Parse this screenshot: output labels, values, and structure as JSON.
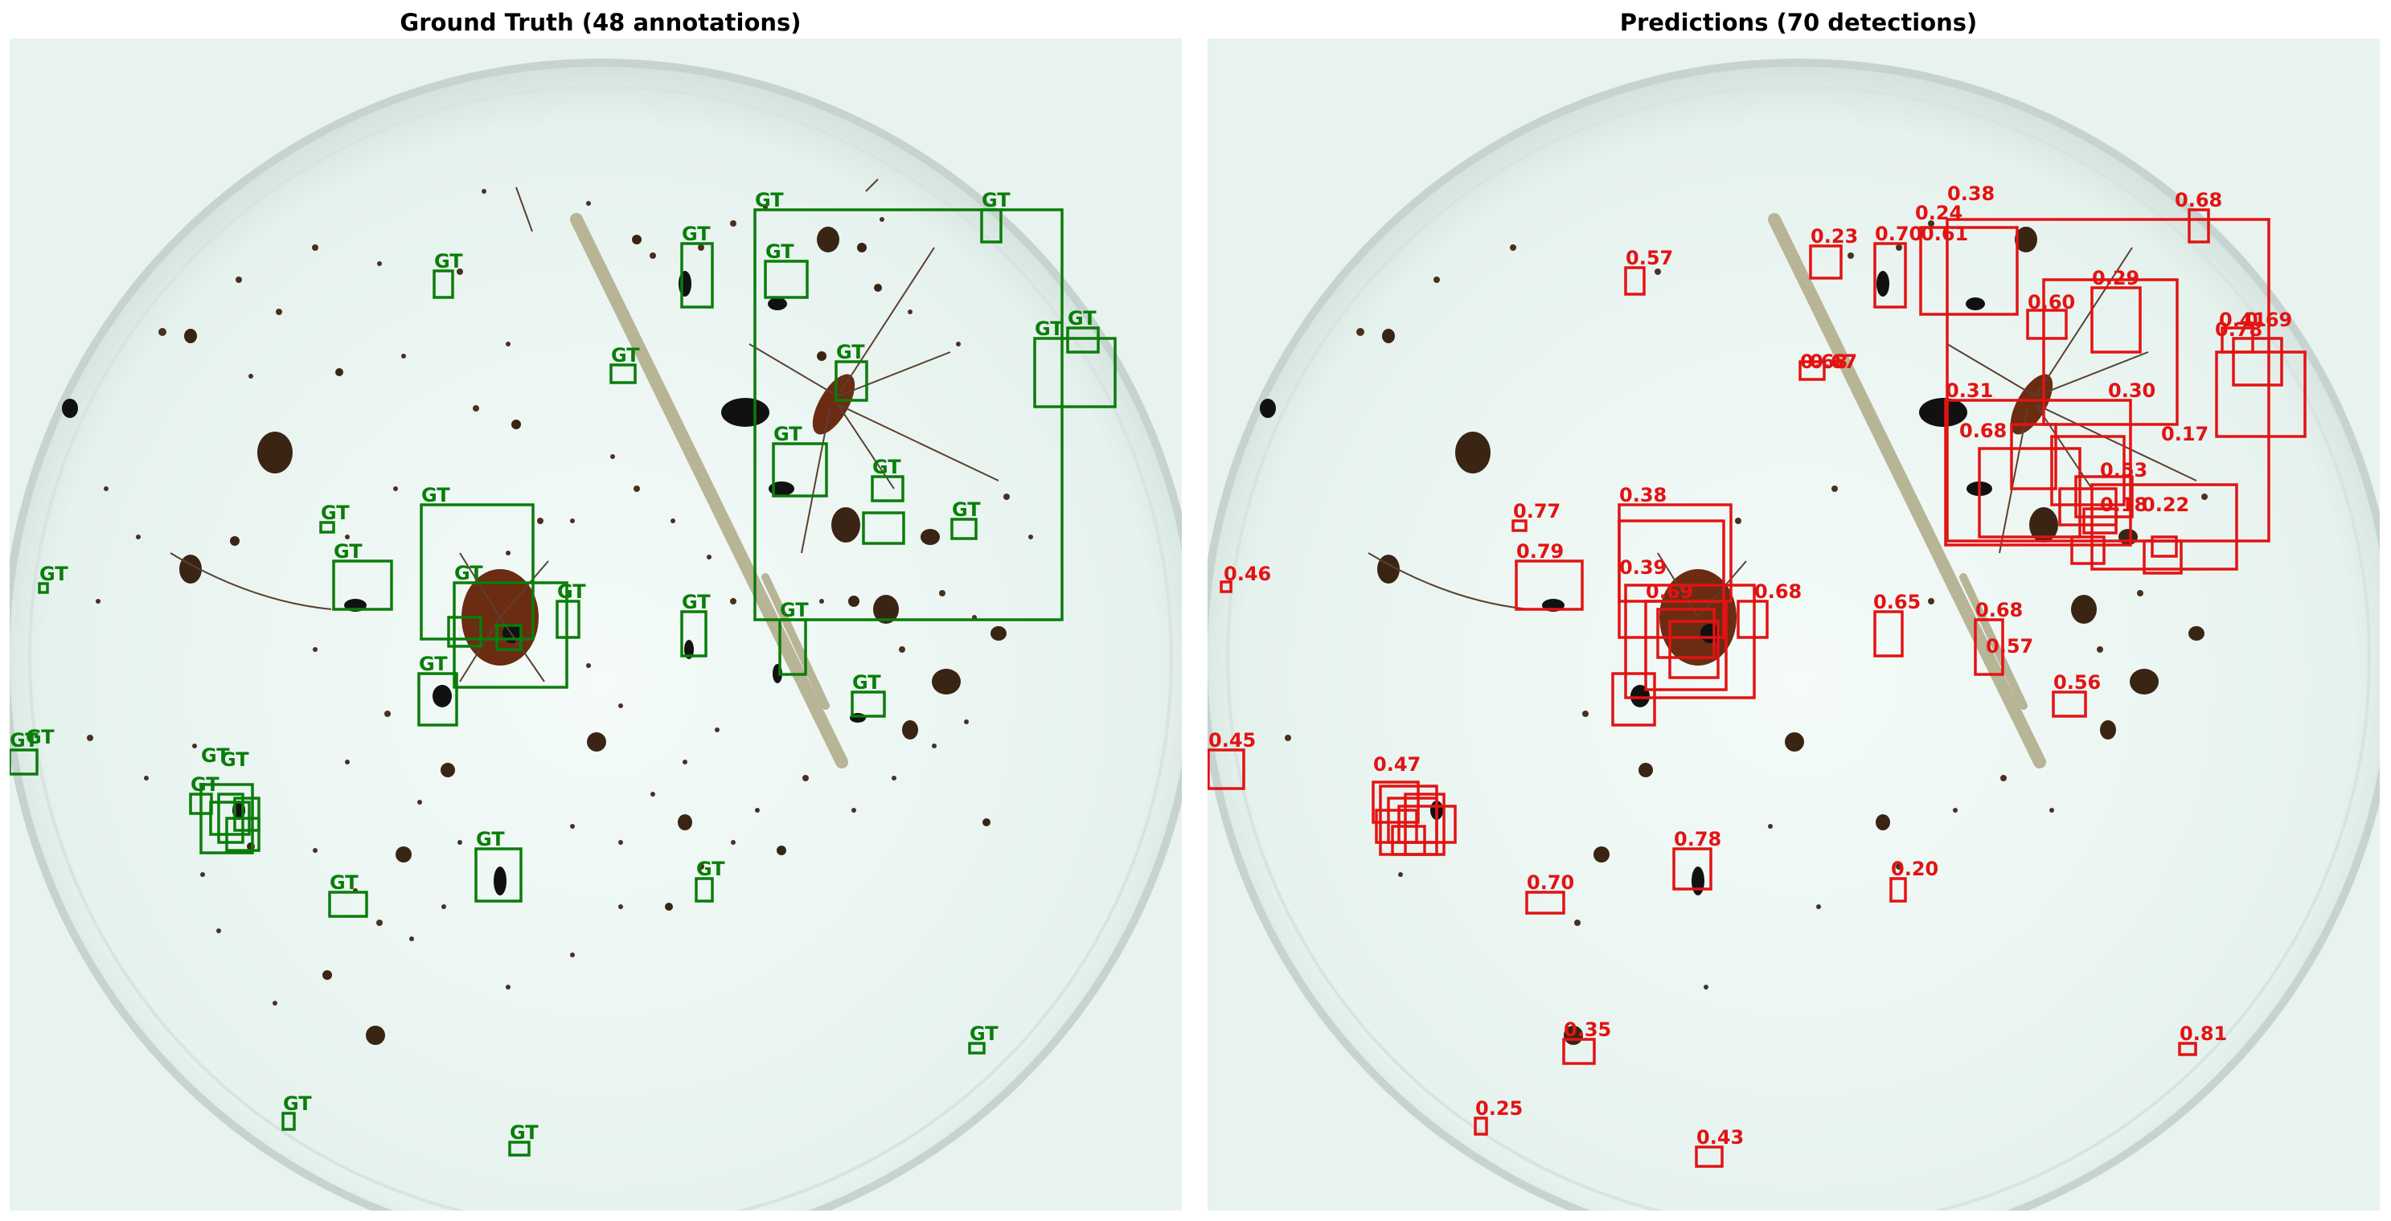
{
  "left_panel": {
    "title": "Ground Truth (48 annotations)",
    "box_label": "GT",
    "box_color": "#0a7d0a"
  },
  "right_panel": {
    "title": "Predictions (70 detections)",
    "box_color": "#e31313",
    "visible_scores": [
      "0.57",
      "0.23",
      "0.70",
      "0.61",
      "0.38",
      "0.24",
      "0.68",
      "0.60",
      "0.29",
      "0.69",
      "0.41",
      "0.78",
      "0.67",
      "0.68",
      "0.31",
      "0.30",
      "0.68",
      "0.17",
      "0.53",
      "0.18",
      "0.22",
      "0.77",
      "0.38",
      "0.79",
      "0.46",
      "0.39",
      "0.69",
      "0.68",
      "0.65",
      "0.68",
      "0.57",
      "0.56",
      "0.45",
      "0.47",
      "0.70",
      "0.78",
      "0.20",
      "0.35",
      "0.81",
      "0.25",
      "0.43"
    ]
  },
  "colors": {
    "background_photo": "#e9f3ef",
    "gt": "#0a7d0a",
    "pred": "#e31313"
  }
}
